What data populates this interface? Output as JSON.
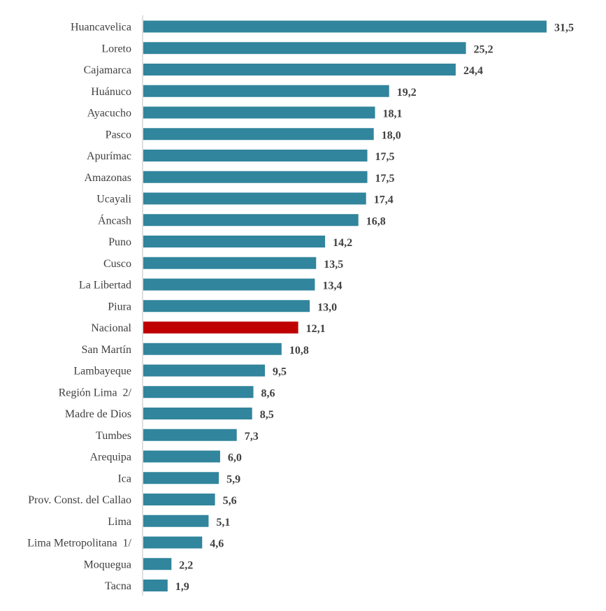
{
  "chart_data": {
    "type": "bar",
    "orientation": "horizontal",
    "title": "",
    "xlabel": "",
    "ylabel": "",
    "grid": false,
    "legend": "none",
    "xlim": [
      0,
      31.5
    ],
    "decimal_separator": ",",
    "categories": [
      "Huancavelica",
      "Loreto",
      "Cajamarca",
      "Huánuco",
      "Ayacucho",
      "Pasco",
      "Apurímac",
      "Amazonas",
      "Ucayali",
      "Áncash",
      "Puno",
      "Cusco",
      "La Libertad",
      "Piura",
      "Nacional",
      "San Martín",
      "Lambayeque",
      "Región Lima  2/",
      "Madre de Dios",
      "Tumbes",
      "Arequipa",
      "Ica",
      "Prov. Const. del Callao",
      "Lima",
      "Lima Metropolitana  1/",
      "Moquegua",
      "Tacna"
    ],
    "values": [
      31.5,
      25.2,
      24.4,
      19.2,
      18.1,
      18.0,
      17.5,
      17.5,
      17.4,
      16.8,
      14.2,
      13.5,
      13.4,
      13.0,
      12.1,
      10.8,
      9.5,
      8.6,
      8.5,
      7.3,
      6.0,
      5.9,
      5.6,
      5.1,
      4.6,
      2.2,
      1.9
    ],
    "highlight_category": "Nacional",
    "colors": {
      "bar": "#31859C",
      "highlight": "#C00000",
      "axis": "#BFBFBF",
      "text": "#404040"
    }
  }
}
